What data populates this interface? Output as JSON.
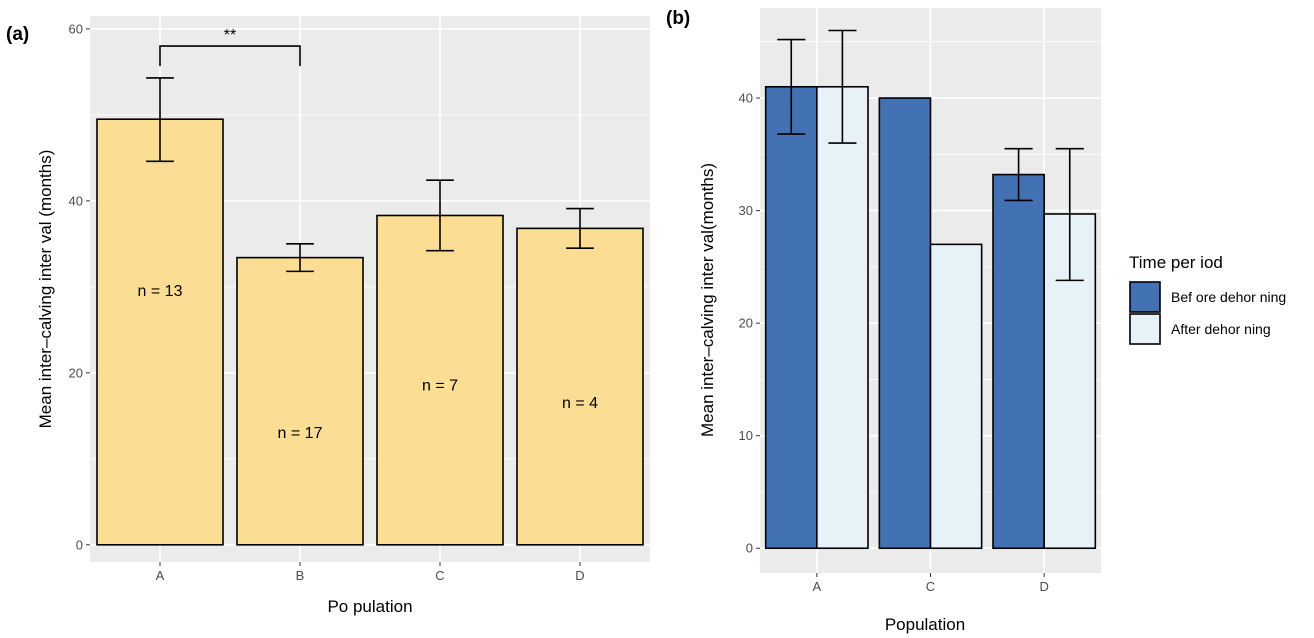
{
  "chart_data": [
    {
      "panel_label": "(a)",
      "type": "bar",
      "categories": [
        "A",
        "B",
        "C",
        "D"
      ],
      "values": [
        49.5,
        33.4,
        38.3,
        36.8
      ],
      "error_low": [
        44.6,
        31.8,
        34.2,
        34.5
      ],
      "error_high": [
        54.3,
        35.0,
        42.4,
        39.1
      ],
      "bar_labels": [
        "n = 13",
        "n = 17",
        "n = 7",
        "n = 4"
      ],
      "bar_label_y": [
        29.5,
        13.0,
        18.5,
        16.5
      ],
      "significance": {
        "from": "A",
        "to": "B",
        "label": "**",
        "y": 58
      },
      "xlabel": "Po pulation",
      "ylabel": "Mean inter–calving inter val (months)",
      "ylim": [
        -2,
        61.5
      ],
      "yticks": [
        0,
        20,
        40,
        60
      ],
      "bar_color": "#fbde94",
      "grid": true
    },
    {
      "panel_label": "(b)",
      "type": "bar",
      "categories": [
        "A",
        "C",
        "D"
      ],
      "series": [
        {
          "name": "Bef ore dehor ning",
          "color": "#4271b4",
          "values": [
            41.0,
            40.0,
            33.2
          ],
          "error_low": [
            36.8,
            null,
            30.9
          ],
          "error_high": [
            45.2,
            null,
            35.5
          ]
        },
        {
          "name": "After dehor ning",
          "color": "#e6f2f8",
          "values": [
            41.0,
            27.0,
            29.7
          ],
          "error_low": [
            36.0,
            null,
            23.8
          ],
          "error_high": [
            46.0,
            null,
            35.5
          ]
        }
      ],
      "xlabel": "Population",
      "ylabel": "Mean inter–calving inter  val(months)",
      "ylim": [
        -2.2,
        48
      ],
      "yticks": [
        0,
        10,
        20,
        30,
        40
      ],
      "legend_title": "Time per iod",
      "legend_position": "right",
      "grid": true
    }
  ]
}
